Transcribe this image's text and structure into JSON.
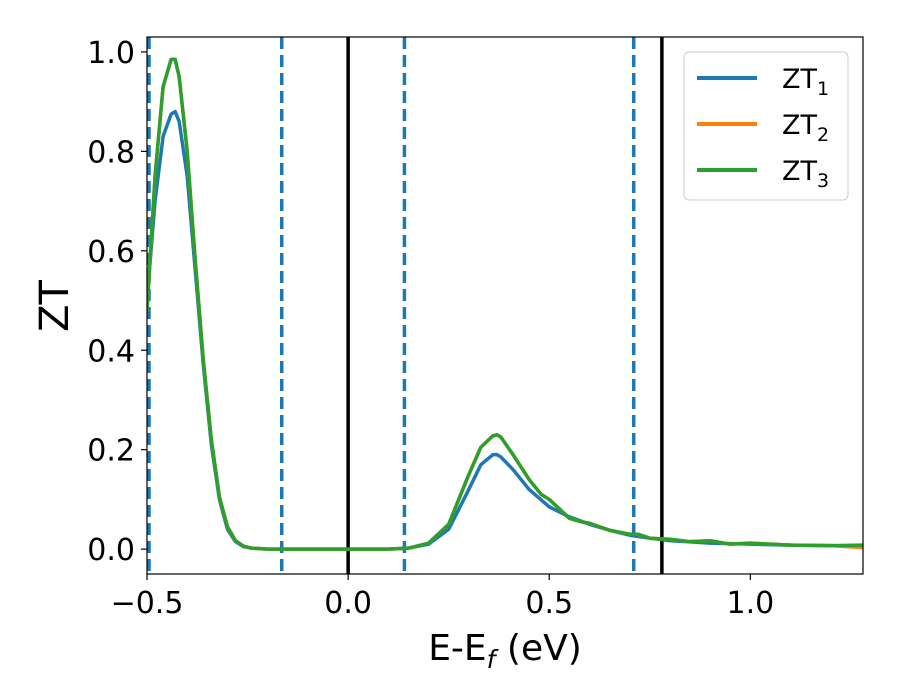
{
  "chart_data": {
    "type": "line",
    "xlabel_main": "E-E",
    "xlabel_sub": "f",
    "xlabel_unit": " (eV)",
    "ylabel": "ZT",
    "xlim": [
      -0.5,
      1.28
    ],
    "ylim": [
      -0.05,
      1.03
    ],
    "xticks": [
      {
        "value": -0.5,
        "label": "−0.5"
      },
      {
        "value": 0.0,
        "label": "0.0"
      },
      {
        "value": 0.5,
        "label": "0.5"
      },
      {
        "value": 1.0,
        "label": "1.0"
      }
    ],
    "yticks": [
      {
        "value": 0.0,
        "label": "0.0"
      },
      {
        "value": 0.2,
        "label": "0.2"
      },
      {
        "value": 0.4,
        "label": "0.4"
      },
      {
        "value": 0.6,
        "label": "0.6"
      },
      {
        "value": 0.8,
        "label": "0.8"
      },
      {
        "value": 1.0,
        "label": "1.0"
      }
    ],
    "grid": false,
    "legend_position": "top-right",
    "vlines": [
      {
        "x": -0.495,
        "style": "dashed",
        "color": "#1f77b4"
      },
      {
        "x": -0.165,
        "style": "dashed",
        "color": "#1f77b4"
      },
      {
        "x": 0.0,
        "style": "solid",
        "color": "#000000"
      },
      {
        "x": 0.14,
        "style": "dashed",
        "color": "#1f77b4"
      },
      {
        "x": 0.71,
        "style": "dashed",
        "color": "#1f77b4"
      },
      {
        "x": 0.78,
        "style": "solid",
        "color": "#000000"
      }
    ],
    "series": [
      {
        "name": "ZT",
        "sub": "1",
        "color": "#1f77b4",
        "x": [
          -0.5,
          -0.48,
          -0.46,
          -0.44,
          -0.43,
          -0.42,
          -0.4,
          -0.38,
          -0.36,
          -0.34,
          -0.32,
          -0.3,
          -0.28,
          -0.26,
          -0.24,
          -0.2,
          -0.15,
          -0.1,
          0.0,
          0.1,
          0.15,
          0.2,
          0.25,
          0.3,
          0.33,
          0.36,
          0.37,
          0.38,
          0.41,
          0.45,
          0.5,
          0.55,
          0.6,
          0.65,
          0.7,
          0.75,
          0.8,
          0.9,
          1.0,
          1.1,
          1.2,
          1.28
        ],
        "y": [
          0.5,
          0.7,
          0.83,
          0.875,
          0.88,
          0.86,
          0.75,
          0.56,
          0.37,
          0.21,
          0.1,
          0.04,
          0.015,
          0.005,
          0.002,
          0.0,
          0.0,
          0.0,
          0.0,
          0.0,
          0.002,
          0.01,
          0.04,
          0.12,
          0.17,
          0.19,
          0.19,
          0.185,
          0.16,
          0.12,
          0.085,
          0.065,
          0.05,
          0.038,
          0.028,
          0.022,
          0.017,
          0.012,
          0.01,
          0.008,
          0.007,
          0.006
        ]
      },
      {
        "name": "ZT",
        "sub": "2",
        "color": "#ff7f0e",
        "x": [
          -0.5,
          -0.48,
          -0.46,
          -0.44,
          -0.43,
          -0.42,
          -0.4,
          -0.38,
          -0.36,
          -0.34,
          -0.32,
          -0.3,
          -0.28,
          -0.26,
          -0.24,
          -0.2,
          -0.15,
          -0.1,
          0.0,
          0.1,
          0.15,
          0.2,
          0.25,
          0.3,
          0.33,
          0.36,
          0.37,
          0.38,
          0.41,
          0.45,
          0.48,
          0.5,
          0.52,
          0.55,
          0.58,
          0.6,
          0.65,
          0.7,
          0.72,
          0.75,
          0.8,
          0.85,
          0.9,
          0.95,
          1.0,
          1.05,
          1.1,
          1.2,
          1.28
        ],
        "y": [
          0.48,
          0.75,
          0.93,
          0.985,
          0.985,
          0.95,
          0.8,
          0.58,
          0.38,
          0.22,
          0.105,
          0.045,
          0.017,
          0.006,
          0.002,
          0.0,
          0.0,
          0.0,
          0.0,
          0.0,
          0.002,
          0.012,
          0.05,
          0.15,
          0.205,
          0.228,
          0.23,
          0.225,
          0.19,
          0.14,
          0.11,
          0.1,
          0.085,
          0.062,
          0.055,
          0.052,
          0.038,
          0.03,
          0.03,
          0.022,
          0.02,
          0.015,
          0.017,
          0.01,
          0.012,
          0.01,
          0.008,
          0.007,
          0.003
        ]
      },
      {
        "name": "ZT",
        "sub": "3",
        "color": "#2ca02c",
        "x": [
          -0.5,
          -0.48,
          -0.46,
          -0.44,
          -0.43,
          -0.42,
          -0.4,
          -0.38,
          -0.36,
          -0.34,
          -0.32,
          -0.3,
          -0.28,
          -0.26,
          -0.24,
          -0.2,
          -0.15,
          -0.1,
          0.0,
          0.1,
          0.15,
          0.2,
          0.25,
          0.3,
          0.33,
          0.36,
          0.37,
          0.38,
          0.41,
          0.45,
          0.48,
          0.5,
          0.52,
          0.55,
          0.58,
          0.6,
          0.65,
          0.7,
          0.72,
          0.75,
          0.8,
          0.85,
          0.9,
          0.95,
          1.0,
          1.05,
          1.1,
          1.2,
          1.28
        ],
        "y": [
          0.48,
          0.75,
          0.93,
          0.985,
          0.985,
          0.95,
          0.8,
          0.58,
          0.38,
          0.22,
          0.105,
          0.045,
          0.017,
          0.006,
          0.002,
          0.0,
          0.0,
          0.0,
          0.0,
          0.0,
          0.002,
          0.012,
          0.05,
          0.15,
          0.205,
          0.228,
          0.23,
          0.225,
          0.19,
          0.14,
          0.11,
          0.1,
          0.085,
          0.062,
          0.055,
          0.052,
          0.038,
          0.03,
          0.03,
          0.022,
          0.02,
          0.015,
          0.017,
          0.01,
          0.012,
          0.01,
          0.008,
          0.007,
          0.008
        ]
      }
    ]
  }
}
